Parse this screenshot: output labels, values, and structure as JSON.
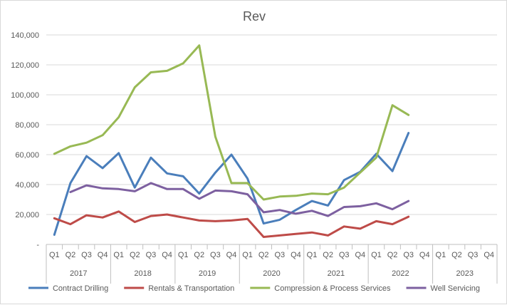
{
  "chart_data": {
    "type": "line",
    "title": "Rev",
    "xlabel": "",
    "ylabel": "",
    "ylim": [
      0,
      140000
    ],
    "y_ticks": [
      "-",
      "20,000",
      "40,000",
      "60,000",
      "80,000",
      "100,000",
      "120,000",
      "140,000"
    ],
    "y_tick_values": [
      0,
      20000,
      40000,
      60000,
      80000,
      100000,
      120000,
      140000
    ],
    "years": [
      "2017",
      "2018",
      "2019",
      "2020",
      "2021",
      "2022",
      "2023"
    ],
    "quarters": [
      "Q1",
      "Q2",
      "Q3",
      "Q4"
    ],
    "grid": "horizontal",
    "legend_position": "bottom",
    "series": [
      {
        "name": "Contract Drilling",
        "color": "#4a7ebb",
        "values": [
          6500,
          41000,
          59000,
          51000,
          61000,
          38000,
          58000,
          47500,
          45500,
          34000,
          48000,
          60000,
          44000,
          14000,
          16500,
          23000,
          29000,
          26000,
          43000,
          48500,
          60500,
          49000,
          74500,
          null,
          null,
          null,
          null,
          null
        ]
      },
      {
        "name": "Rentals & Transportation",
        "color": "#be4b48",
        "values": [
          17500,
          13500,
          19500,
          18000,
          22000,
          15000,
          19000,
          20000,
          18000,
          16000,
          15500,
          16000,
          17000,
          5000,
          6000,
          7000,
          8000,
          6000,
          12000,
          10500,
          15500,
          13500,
          18500,
          null,
          null,
          null,
          null,
          null
        ]
      },
      {
        "name": "Compression & Process Services",
        "color": "#98b954",
        "values": [
          60500,
          65500,
          68000,
          73000,
          85000,
          105000,
          115000,
          116000,
          121000,
          133000,
          72000,
          41000,
          41000,
          30000,
          32000,
          32500,
          34000,
          33500,
          38000,
          48000,
          58000,
          93000,
          86500,
          null,
          null,
          null,
          null,
          null
        ]
      },
      {
        "name": "Well Servicing",
        "color": "#7d60a0",
        "values": [
          null,
          35000,
          39500,
          37500,
          37000,
          35500,
          41000,
          37000,
          37000,
          30500,
          36000,
          35500,
          33500,
          21500,
          23000,
          20500,
          22500,
          19000,
          25000,
          25500,
          27500,
          23500,
          29000,
          null,
          null,
          null,
          null,
          null
        ]
      }
    ]
  }
}
